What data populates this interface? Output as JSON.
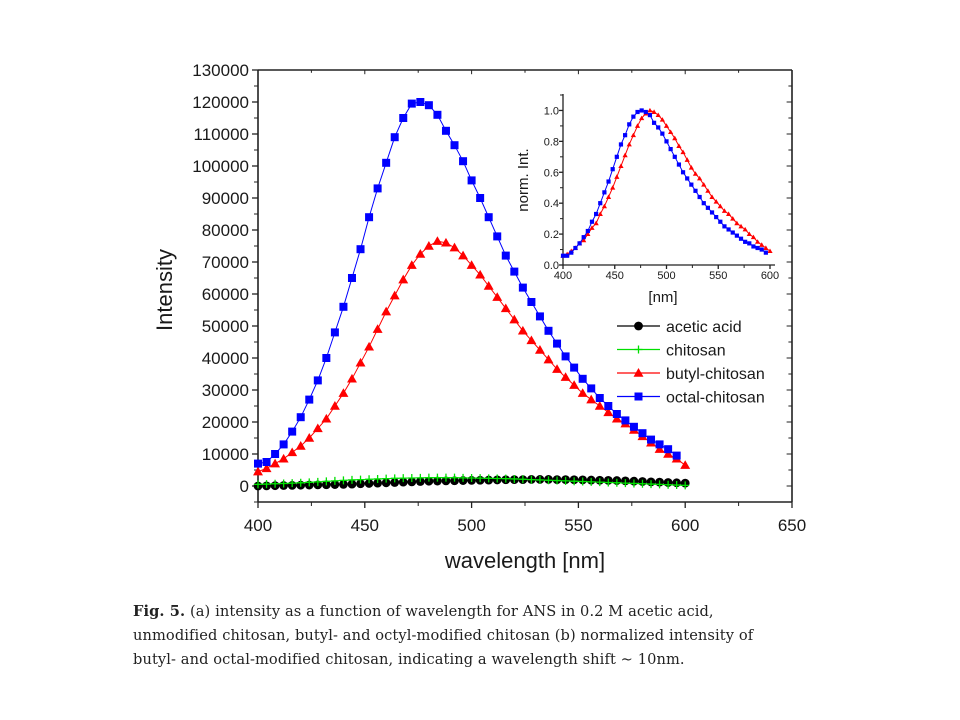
{
  "chart_data": [
    {
      "type": "scatter",
      "panel": "main",
      "title": "",
      "xlabel": "wavelength [nm]",
      "ylabel": "Intensity",
      "xlim": [
        400,
        650
      ],
      "ylim": [
        -5000,
        130000
      ],
      "xticks": [
        400,
        450,
        500,
        550,
        600,
        650
      ],
      "xtick_labels": [
        "400",
        "450",
        "500",
        "550",
        "600",
        "650"
      ],
      "yticks": [
        0,
        10000,
        20000,
        30000,
        40000,
        50000,
        60000,
        70000,
        80000,
        90000,
        100000,
        110000,
        120000,
        130000
      ],
      "ytick_labels": [
        "0",
        "10000",
        "20000",
        "30000",
        "40000",
        "50000",
        "60000",
        "70000",
        "80000",
        "90000",
        "100000",
        "110000",
        "120000",
        "130000"
      ],
      "grid": false,
      "legend_position": "right",
      "series": [
        {
          "name": "acetic acid",
          "color": "#000000",
          "marker": "circle",
          "x": [
            400,
            404,
            408,
            412,
            416,
            420,
            424,
            428,
            432,
            436,
            440,
            444,
            448,
            452,
            456,
            460,
            464,
            468,
            472,
            476,
            480,
            484,
            488,
            492,
            496,
            500,
            504,
            508,
            512,
            516,
            520,
            524,
            528,
            532,
            536,
            540,
            544,
            548,
            552,
            556,
            560,
            564,
            568,
            572,
            576,
            580,
            584,
            588,
            592,
            596,
            600
          ],
          "values": [
            0,
            50,
            100,
            150,
            200,
            250,
            300,
            350,
            400,
            450,
            500,
            600,
            700,
            800,
            900,
            1000,
            1100,
            1200,
            1300,
            1400,
            1500,
            1550,
            1600,
            1650,
            1700,
            1750,
            1800,
            1850,
            1900,
            1950,
            2000,
            2000,
            2050,
            2050,
            2050,
            2000,
            2000,
            1950,
            1900,
            1850,
            1800,
            1750,
            1700,
            1600,
            1500,
            1400,
            1300,
            1200,
            1100,
            1000,
            900
          ]
        },
        {
          "name": "chitosan",
          "color": "#00e000",
          "marker": "plus",
          "x": [
            400,
            404,
            408,
            412,
            416,
            420,
            424,
            428,
            432,
            436,
            440,
            444,
            448,
            452,
            456,
            460,
            464,
            468,
            472,
            476,
            480,
            484,
            488,
            492,
            496,
            500,
            504,
            508,
            512,
            516,
            520,
            524,
            528,
            532,
            536,
            540,
            544,
            548,
            552,
            556,
            560,
            564,
            568,
            572,
            576,
            580,
            584,
            588,
            592,
            596,
            600
          ],
          "values": [
            500,
            600,
            700,
            800,
            900,
            1000,
            1150,
            1300,
            1450,
            1600,
            1750,
            1900,
            2000,
            2100,
            2200,
            2300,
            2400,
            2450,
            2500,
            2550,
            2600,
            2600,
            2600,
            2600,
            2550,
            2500,
            2450,
            2400,
            2350,
            2300,
            2200,
            2100,
            2000,
            1900,
            1800,
            1700,
            1600,
            1500,
            1400,
            1300,
            1200,
            1100,
            1000,
            900,
            800,
            700,
            600,
            500,
            400,
            300,
            200
          ]
        },
        {
          "name": "butyl-chitosan",
          "color": "#ff0000",
          "marker": "triangle",
          "x": [
            400,
            404,
            408,
            412,
            416,
            420,
            424,
            428,
            432,
            436,
            440,
            444,
            448,
            452,
            456,
            460,
            464,
            468,
            472,
            476,
            480,
            484,
            488,
            492,
            496,
            500,
            504,
            508,
            512,
            516,
            520,
            524,
            528,
            532,
            536,
            540,
            544,
            548,
            552,
            556,
            560,
            564,
            568,
            572,
            576,
            580,
            584,
            588,
            592,
            596,
            600
          ],
          "values": [
            4500,
            5500,
            7000,
            8500,
            10500,
            12500,
            15000,
            18000,
            21000,
            25000,
            29000,
            33500,
            38500,
            43500,
            49000,
            54500,
            59500,
            64500,
            69000,
            72500,
            75000,
            76500,
            76000,
            74500,
            72000,
            69000,
            66000,
            62500,
            59000,
            55500,
            52000,
            48500,
            45500,
            42500,
            39500,
            36500,
            34000,
            31500,
            29000,
            27000,
            25000,
            23000,
            21000,
            19500,
            17500,
            15500,
            13500,
            11500,
            10000,
            8500,
            6500
          ]
        },
        {
          "name": "octal-chitosan",
          "color": "#0000ff",
          "marker": "square",
          "x": [
            400,
            404,
            408,
            412,
            416,
            420,
            424,
            428,
            432,
            436,
            440,
            444,
            448,
            452,
            456,
            460,
            464,
            468,
            472,
            476,
            480,
            484,
            488,
            492,
            496,
            500,
            504,
            508,
            512,
            516,
            520,
            524,
            528,
            532,
            536,
            540,
            544,
            548,
            552,
            556,
            560,
            564,
            568,
            572,
            576,
            580,
            584,
            588,
            592,
            596
          ],
          "values": [
            7000,
            7500,
            10000,
            13000,
            17000,
            21500,
            27000,
            33000,
            40000,
            48000,
            56000,
            65000,
            74000,
            84000,
            93000,
            101000,
            109000,
            115000,
            119500,
            120000,
            119000,
            116000,
            111000,
            106500,
            101500,
            95500,
            90000,
            84000,
            78000,
            72000,
            67000,
            62000,
            57500,
            53000,
            48500,
            44500,
            40500,
            37000,
            33500,
            30500,
            27500,
            25000,
            22500,
            20500,
            18500,
            16500,
            14500,
            13000,
            11500,
            9500
          ]
        }
      ]
    },
    {
      "type": "scatter",
      "panel": "inset",
      "title": "",
      "xlabel": "[nm]",
      "ylabel": "norm. Int.",
      "xlim": [
        400,
        600
      ],
      "ylim": [
        0,
        1.1
      ],
      "xticks": [
        400,
        450,
        500,
        550,
        600
      ],
      "xtick_labels": [
        "400",
        "450",
        "500",
        "550",
        "600"
      ],
      "yticks": [
        0,
        0.2,
        0.4,
        0.6,
        0.8,
        1.0
      ],
      "ytick_labels": [
        "0.0",
        "0.2",
        "0.4",
        "0.6",
        "0.8",
        "1.0"
      ],
      "grid": false,
      "series": [
        {
          "name": "butyl-chitosan (normalized)",
          "color": "#ff0000",
          "marker": "triangle",
          "x": [
            400,
            404,
            408,
            412,
            416,
            420,
            424,
            428,
            432,
            436,
            440,
            444,
            448,
            452,
            456,
            460,
            464,
            468,
            472,
            476,
            480,
            484,
            488,
            492,
            496,
            500,
            504,
            508,
            512,
            516,
            520,
            524,
            528,
            532,
            536,
            540,
            544,
            548,
            552,
            556,
            560,
            564,
            568,
            572,
            576,
            580,
            584,
            588,
            592,
            596,
            600
          ],
          "values": [
            0.06,
            0.07,
            0.09,
            0.11,
            0.14,
            0.16,
            0.2,
            0.24,
            0.27,
            0.33,
            0.38,
            0.44,
            0.5,
            0.57,
            0.64,
            0.71,
            0.78,
            0.84,
            0.9,
            0.95,
            0.98,
            1.0,
            0.99,
            0.97,
            0.94,
            0.9,
            0.86,
            0.82,
            0.77,
            0.73,
            0.68,
            0.63,
            0.59,
            0.56,
            0.52,
            0.48,
            0.44,
            0.41,
            0.38,
            0.35,
            0.33,
            0.3,
            0.27,
            0.25,
            0.23,
            0.2,
            0.18,
            0.15,
            0.13,
            0.11,
            0.09
          ]
        },
        {
          "name": "octal-chitosan (normalized)",
          "color": "#0000ff",
          "marker": "square",
          "x": [
            400,
            404,
            408,
            412,
            416,
            420,
            424,
            428,
            432,
            436,
            440,
            444,
            448,
            452,
            456,
            460,
            464,
            468,
            472,
            476,
            480,
            484,
            488,
            492,
            496,
            500,
            504,
            508,
            512,
            516,
            520,
            524,
            528,
            532,
            536,
            540,
            544,
            548,
            552,
            556,
            560,
            564,
            568,
            572,
            576,
            580,
            584,
            588,
            592,
            596
          ],
          "values": [
            0.06,
            0.06,
            0.08,
            0.11,
            0.14,
            0.18,
            0.22,
            0.28,
            0.33,
            0.4,
            0.47,
            0.54,
            0.62,
            0.7,
            0.78,
            0.84,
            0.91,
            0.96,
            0.99,
            1.0,
            0.99,
            0.97,
            0.92,
            0.89,
            0.85,
            0.8,
            0.75,
            0.7,
            0.65,
            0.6,
            0.56,
            0.52,
            0.48,
            0.44,
            0.4,
            0.37,
            0.34,
            0.31,
            0.28,
            0.25,
            0.23,
            0.21,
            0.19,
            0.17,
            0.15,
            0.14,
            0.12,
            0.11,
            0.1,
            0.08
          ]
        }
      ]
    }
  ],
  "caption": {
    "fig_label": "Fig. 5.",
    "line1": " (a) intensity as a function of wavelength for ANS in 0.2 M acetic acid,",
    "line2": "unmodified chitosan, butyl- and octyl-modified chitosan (b) normalized intensity of",
    "line3": "butyl- and octal-modified chitosan, indicating a wavelength shift ∼ 10nm."
  }
}
